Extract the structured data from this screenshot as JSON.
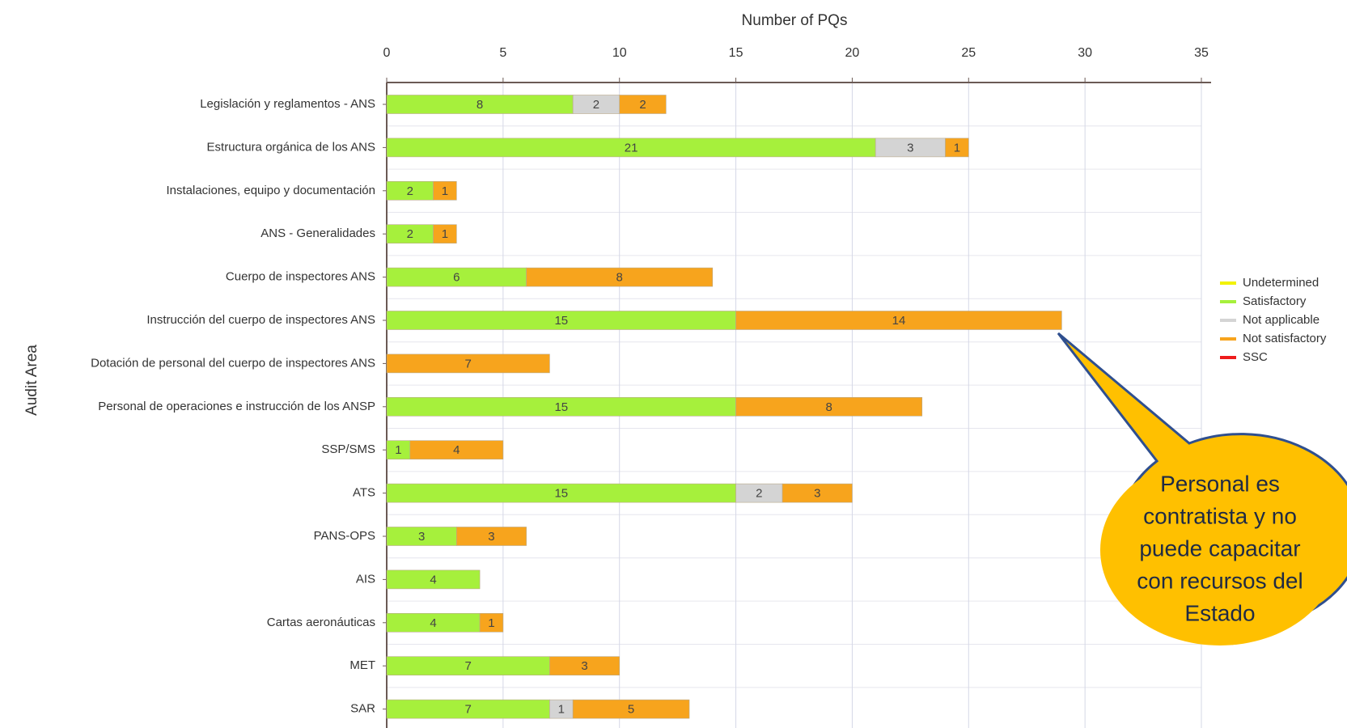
{
  "chart_data": {
    "type": "stacked_bar_horizontal",
    "title": "Number of PQs",
    "y_axis_label": "Audit Area",
    "categories": [
      "Legislación y reglamentos - ANS",
      "Estructura orgánica de los ANS",
      "Instalaciones, equipo y documentación",
      "ANS - Generalidades",
      "Cuerpo de inspectores ANS",
      "Instrucción del cuerpo de inspectores ANS",
      "Dotación de personal del cuerpo de inspectores ANS",
      "Personal de operaciones e instrucción de los ANSP",
      "SSP/SMS",
      "ATS",
      "PANS-OPS",
      "AIS",
      "Cartas aeronáuticas",
      "MET",
      "SAR"
    ],
    "series": [
      {
        "name": "Undetermined",
        "color": "#f2f200",
        "values": [
          0,
          0,
          0,
          0,
          0,
          0,
          0,
          0,
          0,
          0,
          0,
          0,
          0,
          0,
          0
        ]
      },
      {
        "name": "Satisfactory",
        "color": "#a6f03c",
        "values": [
          8,
          21,
          2,
          2,
          6,
          15,
          0,
          15,
          1,
          15,
          3,
          4,
          4,
          7,
          7
        ]
      },
      {
        "name": "Not applicable",
        "color": "#d4d4d4",
        "values": [
          2,
          3,
          0,
          0,
          0,
          0,
          0,
          0,
          0,
          2,
          0,
          0,
          0,
          0,
          1
        ]
      },
      {
        "name": "Not satisfactory",
        "color": "#f7a41d",
        "values": [
          2,
          1,
          1,
          1,
          8,
          14,
          7,
          8,
          4,
          3,
          3,
          0,
          1,
          3,
          5
        ]
      },
      {
        "name": "SSC",
        "color": "#ee1c1c",
        "values": [
          0,
          0,
          0,
          0,
          0,
          0,
          0,
          0,
          0,
          0,
          0,
          0,
          0,
          0,
          0
        ]
      }
    ],
    "xlim": [
      0,
      35
    ],
    "xticks": [
      0,
      5,
      10,
      15,
      20,
      25,
      30,
      35
    ],
    "grid": true,
    "annotation": {
      "lines": [
        "Personal es",
        "contratista y no",
        "puede capacitar",
        "con recursos del",
        "Estado"
      ]
    }
  }
}
